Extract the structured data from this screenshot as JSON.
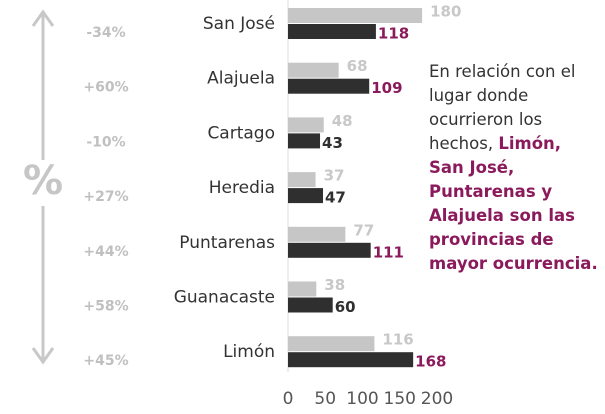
{
  "chart_data": {
    "type": "hbar",
    "categories": [
      "San José",
      "Alajuela",
      "Cartago",
      "Heredia",
      "Puntarenas",
      "Guanacaste",
      "Limón"
    ],
    "series": [
      {
        "color": "#c6c6c6",
        "values": [
          180,
          68,
          48,
          37,
          77,
          38,
          116
        ],
        "label_color": "#c8c8c8"
      },
      {
        "color": "#2f2f2f",
        "values": [
          118,
          109,
          43,
          47,
          111,
          60,
          168
        ],
        "label_colors": [
          "#8b1a5c",
          "#8b1a5c",
          "#2f2f2f",
          "#2f2f2f",
          "#8b1a5c",
          "#2f2f2f",
          "#8b1a5c"
        ]
      }
    ],
    "change_labels": [
      "-34%",
      "+60%",
      "-10%",
      "+27%",
      "+44%",
      "+58%",
      "+45%"
    ],
    "axis_symbol": "%",
    "xlim": [
      0,
      200
    ],
    "xticks": [
      0,
      50,
      100,
      150,
      200
    ],
    "annotation": [
      {
        "text": "En relación con el lugar donde ocurrieron los hechos, "
      },
      {
        "text": "Limón, San José, Puntarenas y Alajuela son las provincias de mayor ocurrencia.",
        "bold": true,
        "color": "#8b1a5c"
      }
    ]
  }
}
